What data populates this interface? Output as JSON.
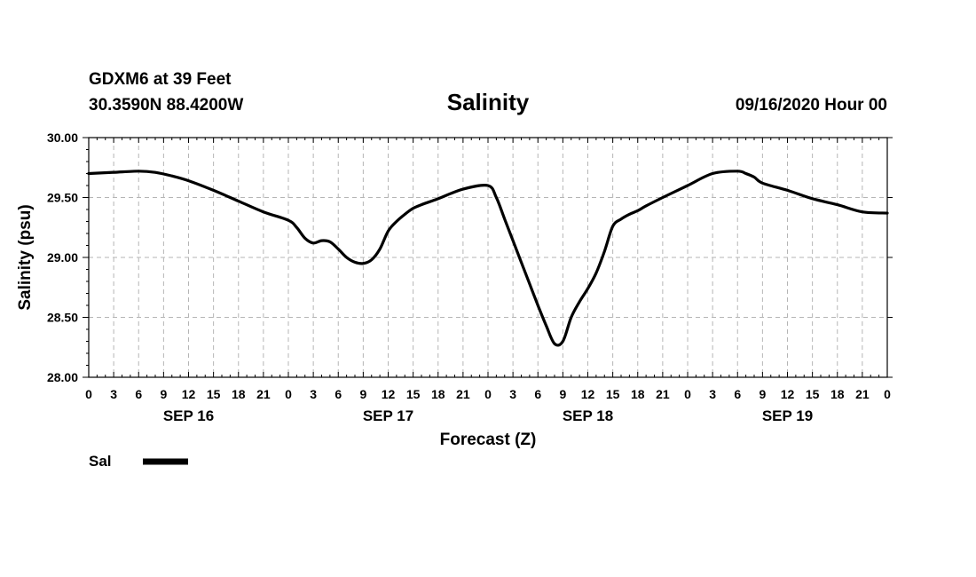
{
  "header": {
    "station": "GDXM6 at 39 Feet",
    "coords": "30.3590N 88.4200W",
    "title": "Salinity",
    "issued": "09/16/2020 Hour 00"
  },
  "chart_data": {
    "type": "line",
    "title": "Salinity",
    "xlabel": "Forecast (Z)",
    "ylabel": "Salinity (psu)",
    "x_unit": "hours from 09/16/2020 00Z",
    "xlim": [
      0,
      96
    ],
    "ylim": [
      28.0,
      30.0
    ],
    "yticks": [
      "28.00",
      "28.50",
      "29.00",
      "29.50",
      "30.00"
    ],
    "ytick_values": [
      28.0,
      28.5,
      29.0,
      29.5,
      30.0
    ],
    "xtick_labels": [
      "0",
      "3",
      "6",
      "9",
      "12",
      "15",
      "18",
      "21",
      "0",
      "3",
      "6",
      "9",
      "12",
      "15",
      "18",
      "21",
      "0",
      "3",
      "6",
      "9",
      "12",
      "15",
      "18",
      "21",
      "0",
      "3",
      "6",
      "9",
      "12",
      "15",
      "18",
      "21",
      "0"
    ],
    "day_labels": [
      {
        "label": "SEP 16",
        "hour": 12
      },
      {
        "label": "SEP 17",
        "hour": 36
      },
      {
        "label": "SEP 18",
        "hour": 60
      },
      {
        "label": "SEP 19",
        "hour": 84
      }
    ],
    "grid": true,
    "legend_position": "bottom-left",
    "series": [
      {
        "name": "Sal",
        "color": "#000000",
        "x": [
          0,
          3,
          6,
          8,
          10,
          12,
          15,
          18,
          21,
          24,
          25,
          26,
          27,
          28,
          29,
          30,
          31,
          32,
          33,
          34,
          35,
          36,
          37,
          38,
          39,
          40,
          42,
          45,
          48,
          49,
          50,
          51,
          52,
          53,
          54,
          55,
          56,
          57,
          58,
          59,
          60,
          61,
          62,
          63,
          64,
          65,
          66,
          67,
          69,
          72,
          75,
          78,
          79,
          80,
          81,
          84,
          87,
          90,
          93,
          96
        ],
        "y": [
          29.7,
          29.71,
          29.72,
          29.71,
          29.68,
          29.64,
          29.56,
          29.47,
          29.38,
          29.31,
          29.25,
          29.16,
          29.12,
          29.14,
          29.13,
          29.07,
          29.0,
          28.96,
          28.95,
          28.98,
          29.07,
          29.22,
          29.3,
          29.36,
          29.41,
          29.44,
          29.49,
          29.57,
          29.6,
          29.5,
          29.32,
          29.14,
          28.96,
          28.78,
          28.6,
          28.43,
          28.28,
          28.3,
          28.5,
          28.63,
          28.74,
          28.87,
          29.05,
          29.26,
          29.32,
          29.36,
          29.39,
          29.43,
          29.5,
          29.6,
          29.7,
          29.72,
          29.7,
          29.67,
          29.62,
          29.56,
          29.49,
          29.44,
          29.38,
          29.37
        ]
      }
    ]
  }
}
